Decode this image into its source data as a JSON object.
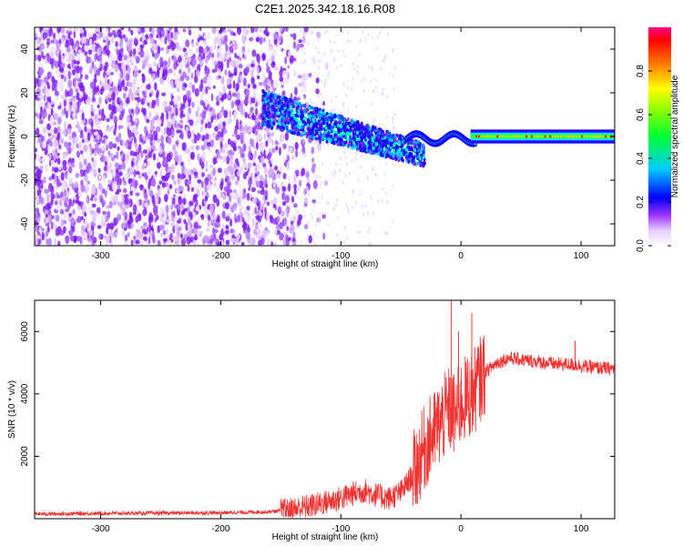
{
  "figure_title": "C2E1.2025.342.18.16.R08",
  "colors": {
    "trace": "#ee3333",
    "background": "#ffffff",
    "axis": "#000000"
  },
  "chart_data": [
    {
      "type": "heatmap",
      "title": "C2E1.2025.342.18.16.R08",
      "xlabel": "Height of straight line (km)",
      "ylabel": "Frequency (Hz)",
      "xlim": [
        -355,
        128
      ],
      "ylim": [
        -50,
        50
      ],
      "xticks": [
        -300,
        -200,
        -100,
        0,
        100
      ],
      "yticks": [
        -40,
        -20,
        0,
        20,
        40
      ],
      "xtick_labels": [
        "-300",
        "-200",
        "-100",
        "0",
        "100"
      ],
      "ytick_labels": [
        "-40",
        "-20",
        "0",
        "20",
        "40"
      ],
      "colorbar": {
        "label": "Normalized spectral amplitude",
        "range": [
          0,
          1
        ],
        "ticks": [
          0.0,
          0.2,
          0.4,
          0.6,
          0.8
        ],
        "tick_labels": [
          "0.0",
          "0.2",
          "0.4",
          "0.6",
          "0.8"
        ],
        "colormap": "rainbow (white-violet-blue-cyan-green-yellow-red-magenta)"
      },
      "description_regions": [
        {
          "x_range": [
            -355,
            -130
          ],
          "freq_range": [
            -50,
            50
          ],
          "amplitude": "low noise (~0.1-0.2)"
        },
        {
          "x_range": [
            -165,
            -40
          ],
          "freq_range": [
            -12,
            22
          ],
          "amplitude": "emerging signal (0.2-0.5)"
        },
        {
          "x_range": [
            -40,
            128
          ],
          "freq_center": 0,
          "freq_halfwidth": 3,
          "amplitude": "strong signal (0.5-1.0)"
        }
      ]
    },
    {
      "type": "line",
      "xlabel": "Height of straight line (km)",
      "ylabel": "SNR (10 * v/v)",
      "xlim": [
        -355,
        128
      ],
      "ylim": [
        0,
        7000
      ],
      "xticks": [
        -300,
        -200,
        -100,
        0,
        100
      ],
      "yticks": [
        2000,
        4000,
        6000
      ],
      "xtick_labels": [
        "-300",
        "-200",
        "-100",
        "0",
        "100"
      ],
      "ytick_labels": [
        "2000",
        "4000",
        "6000"
      ],
      "series": [
        {
          "name": "SNR",
          "x": [
            -355,
            -300,
            -250,
            -200,
            -160,
            -140,
            -120,
            -110,
            -100,
            -90,
            -80,
            -70,
            -60,
            -50,
            -40,
            -30,
            -20,
            -15,
            -10,
            -5,
            0,
            5,
            10,
            15,
            20,
            30,
            40,
            50,
            60,
            70,
            80,
            90,
            100,
            110,
            128
          ],
          "values": [
            150,
            170,
            180,
            190,
            220,
            300,
            450,
            550,
            650,
            800,
            900,
            750,
            650,
            850,
            1400,
            2300,
            2900,
            3200,
            3500,
            3300,
            3700,
            3900,
            4000,
            4400,
            4700,
            5000,
            5150,
            5100,
            5050,
            5000,
            4950,
            4950,
            4900,
            4850,
            4800
          ]
        }
      ],
      "spikes": [
        {
          "x": -8,
          "value": 7000
        },
        {
          "x": -2,
          "value": 6000
        },
        {
          "x": 9,
          "value": 6600
        },
        {
          "x": 95,
          "value": 5700
        }
      ]
    }
  ]
}
